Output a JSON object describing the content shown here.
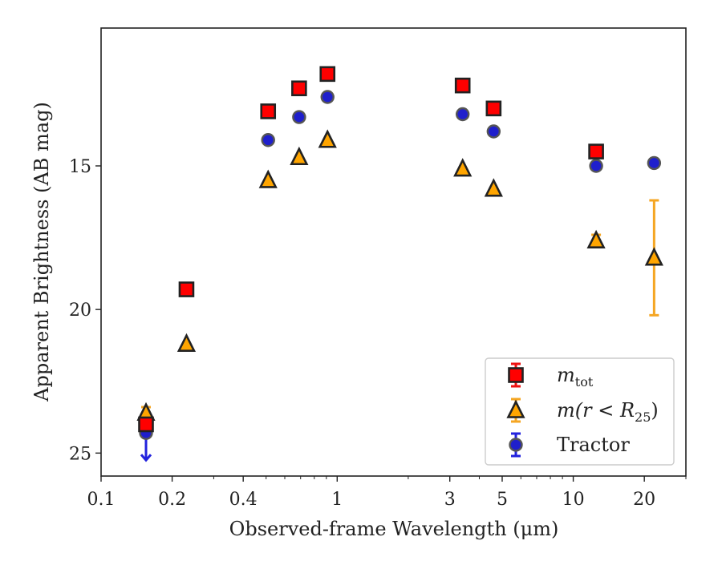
{
  "chart_data": {
    "type": "scatter",
    "xlabel": "Observed-frame Wavelength (μm)",
    "ylabel": "Apparent Brightness (AB mag)",
    "xscale": "log",
    "xlim": [
      0.1,
      30
    ],
    "ylim": [
      25.8,
      10.2
    ],
    "y_inverted": true,
    "x_ticks": [
      0.1,
      0.2,
      0.4,
      1,
      3,
      5,
      10,
      20
    ],
    "x_tick_labels": [
      "0.1",
      "0.2",
      "0.4",
      "1",
      "3",
      "5",
      "10",
      "20"
    ],
    "y_ticks": [
      15,
      20,
      25
    ],
    "y_tick_labels": [
      "15",
      "20",
      "25"
    ],
    "grid": false,
    "legend_position": "lower-right",
    "series": [
      {
        "name": "m_tot",
        "label_main": "m",
        "label_sub": "tot",
        "marker": "square",
        "color": "#ff0000",
        "errcolor": "#ee1111",
        "points": [
          {
            "x": 0.155,
            "y": 24.0,
            "err": 0.2
          },
          {
            "x": 0.23,
            "y": 19.3
          },
          {
            "x": 0.51,
            "y": 13.1
          },
          {
            "x": 0.69,
            "y": 12.3
          },
          {
            "x": 0.91,
            "y": 11.8
          },
          {
            "x": 3.4,
            "y": 12.2
          },
          {
            "x": 4.6,
            "y": 13.0
          },
          {
            "x": 12.5,
            "y": 14.5
          }
        ]
      },
      {
        "name": "m(r < R25)",
        "label_main": "m(r < R",
        "label_sub": "25",
        "label_tail": ")",
        "marker": "triangle",
        "color": "#ffa500",
        "errcolor": "#f5a623",
        "points": [
          {
            "x": 0.155,
            "y": 23.6,
            "err": 0.2
          },
          {
            "x": 0.23,
            "y": 21.2
          },
          {
            "x": 0.51,
            "y": 15.5
          },
          {
            "x": 0.69,
            "y": 14.7
          },
          {
            "x": 0.91,
            "y": 14.1
          },
          {
            "x": 3.4,
            "y": 15.1
          },
          {
            "x": 4.6,
            "y": 15.8
          },
          {
            "x": 12.5,
            "y": 17.6,
            "err": 0.2
          },
          {
            "x": 22.0,
            "y": 18.2,
            "err": 2.0
          }
        ]
      },
      {
        "name": "Tractor",
        "label_main": "Tractor",
        "marker": "circle",
        "color": "#1f1fcc",
        "errcolor": "#2222dd",
        "points": [
          {
            "x": 0.155,
            "y": 24.3,
            "upper_limit": true
          },
          {
            "x": 0.23,
            "y": 19.3
          },
          {
            "x": 0.51,
            "y": 14.1
          },
          {
            "x": 0.69,
            "y": 13.3
          },
          {
            "x": 0.91,
            "y": 12.6
          },
          {
            "x": 3.4,
            "y": 13.2
          },
          {
            "x": 4.6,
            "y": 13.8
          },
          {
            "x": 12.5,
            "y": 15.0
          },
          {
            "x": 22.0,
            "y": 14.9
          }
        ]
      }
    ]
  }
}
